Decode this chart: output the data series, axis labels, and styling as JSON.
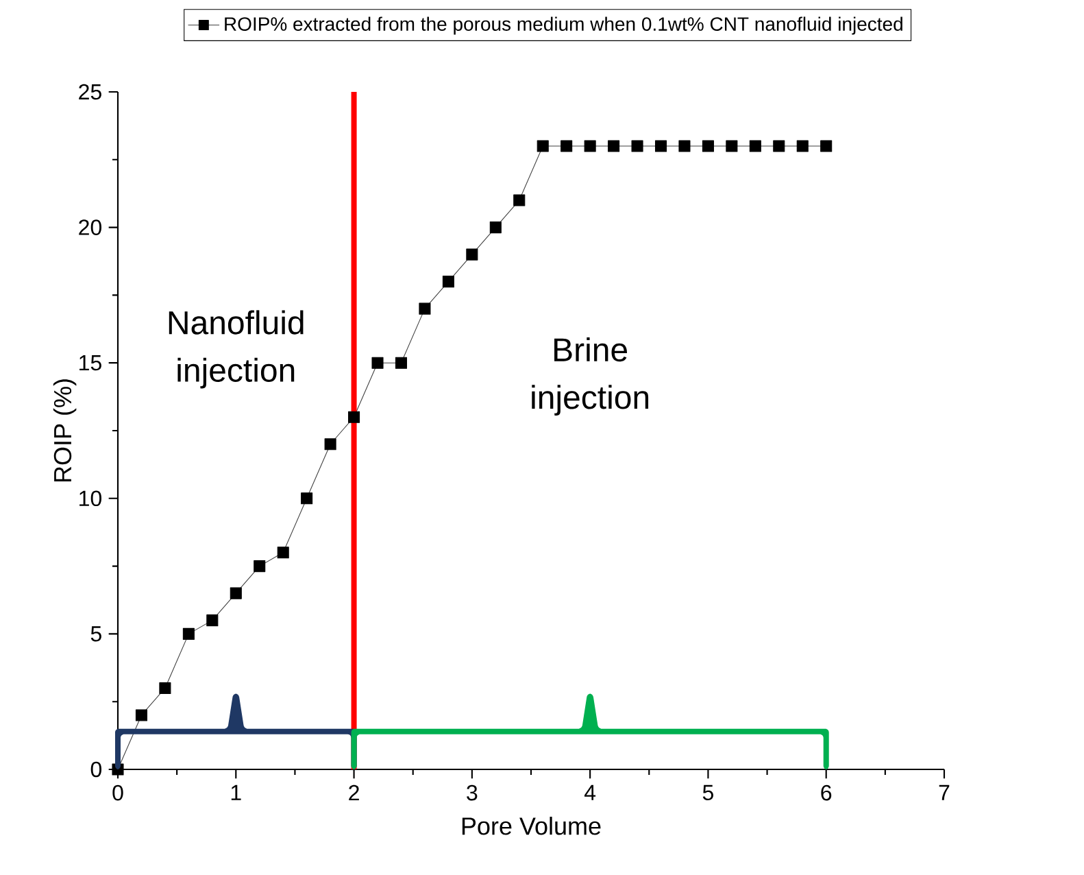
{
  "chart_data": {
    "type": "line",
    "xlabel": "Pore Volume",
    "ylabel": "ROIP (%)",
    "series": [
      {
        "name": "ROIP% extracted from the porous medium when 0.1wt% CNT nanofluid injected",
        "color": "#000000",
        "x": [
          0,
          0.2,
          0.4,
          0.6,
          0.8,
          1.0,
          1.2,
          1.4,
          1.6,
          1.8,
          2.0,
          2.2,
          2.4,
          2.6,
          2.8,
          3.0,
          3.2,
          3.4,
          3.6,
          3.8,
          4.0,
          4.2,
          4.4,
          4.6,
          4.8,
          5.0,
          5.2,
          5.4,
          5.6,
          5.8,
          6.0
        ],
        "values": [
          0,
          2,
          3,
          5,
          5.5,
          6.5,
          7.5,
          8,
          10,
          12,
          13,
          15,
          15,
          17,
          18,
          19,
          20,
          21,
          23,
          23,
          23,
          23,
          23,
          23,
          23,
          23,
          23,
          23,
          23,
          23,
          23
        ]
      }
    ],
    "marker": "square",
    "line_style": "solid",
    "legend": "top",
    "xlim": [
      0,
      7
    ],
    "xticks": [
      0,
      1,
      2,
      3,
      4,
      5,
      6,
      7
    ],
    "ylim": [
      0,
      25
    ],
    "yticks": [
      0,
      5,
      10,
      15,
      20,
      25
    ],
    "ref_lines": [
      {
        "axis": "x",
        "value": 2,
        "color": "#ff0000",
        "line_style": "solid"
      }
    ],
    "annotations": [
      "Nanofluid injection",
      "Brine injection"
    ]
  }
}
